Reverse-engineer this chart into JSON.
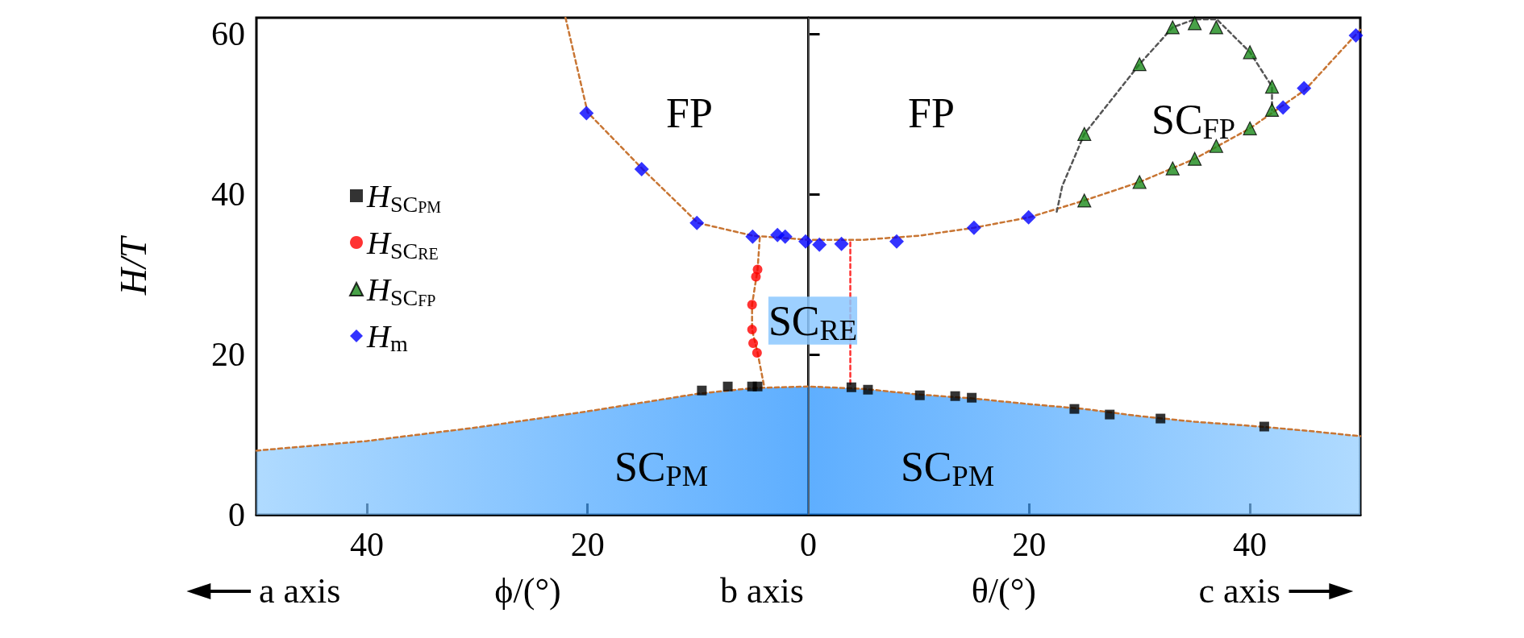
{
  "chart_data": {
    "type": "scatter",
    "ylabel": "H/T",
    "xlim": [
      -50,
      50
    ],
    "ylim": [
      0,
      62
    ],
    "xticks": [
      {
        "value": -40,
        "label": "40"
      },
      {
        "value": -20,
        "label": "20"
      },
      0,
      20,
      {
        "value": 40,
        "label": "40"
      }
    ],
    "yticks": [
      0,
      20,
      40,
      60
    ],
    "grid": false,
    "legend": "left",
    "series": [
      {
        "type": "area",
        "color": "#1a8cff",
        "line_style": "dashed",
        "marker": "none",
        "x": [
          -50,
          -40,
          -30,
          -20,
          -10,
          -5,
          0,
          5,
          10,
          15,
          20,
          25,
          30,
          35,
          40,
          45,
          50
        ],
        "values": [
          8,
          9.2,
          10.9,
          12.9,
          15.1,
          15.8,
          16,
          15.7,
          15,
          14.5,
          13.8,
          13.2,
          12.3,
          11.6,
          11.1,
          10.5,
          9.8
        ]
      },
      {
        "type": "line",
        "color": "#c87533",
        "line_style": "dashed",
        "marker": "none",
        "x": [
          -22,
          -20,
          -15,
          -10,
          -5,
          0,
          5,
          10,
          15,
          20,
          25,
          30,
          35,
          40,
          45,
          50
        ],
        "values": [
          62,
          50.2,
          43.1,
          36.4,
          34.8,
          34.3,
          34.3,
          34.8,
          35.8,
          37.1,
          39.2,
          41.5,
          44.4,
          48.2,
          53,
          60.5
        ]
      },
      {
        "type": "line",
        "color": "#555555",
        "line_style": "dashed",
        "marker": "none",
        "x": [
          22.5,
          23,
          25,
          30,
          33,
          35,
          37,
          40,
          42,
          42
        ],
        "values": [
          37.8,
          41,
          47.5,
          56.2,
          60.8,
          61.8,
          61.8,
          57.7,
          53.4,
          50.5
        ]
      },
      {
        "type": "line",
        "color": "#c87533",
        "line_style": "dashed",
        "marker": "none",
        "x": [
          -4.4,
          -4.6,
          -5.1,
          -5.1,
          -4.6,
          -4
        ],
        "values": [
          34.6,
          30.6,
          26.2,
          23.1,
          20.2,
          16
        ]
      },
      {
        "type": "line",
        "color": "#ff3030",
        "line_style": "dashed",
        "marker": "none",
        "x": [
          3.8,
          3.8
        ],
        "values": [
          34,
          16
        ]
      },
      {
        "name": "H$_{SC}$$_{PM}$",
        "color": "#000000",
        "marker": "square",
        "x": [
          -9.65,
          -7.3,
          -5.1,
          -4.6,
          3.9,
          5.4,
          10.1,
          13.3,
          14.8,
          24.1,
          27.3,
          31.9,
          41.3
        ],
        "values": [
          15.5,
          16,
          16,
          16,
          15.9,
          15.6,
          14.9,
          14.8,
          14.6,
          13.2,
          12.5,
          12,
          11
        ]
      },
      {
        "name": "H$_{SC}$$_{RE}$",
        "color": "#ff0000",
        "marker": "circle",
        "x": [
          -4.6,
          -4.75,
          -5.1,
          -5.1,
          -5,
          -4.65
        ],
        "values": [
          30.6,
          29.7,
          26.2,
          23.1,
          21.4,
          20.2
        ]
      },
      {
        "name": "H$_{SC}$$_{FP}$",
        "color": "#1a8a1a",
        "marker": "triangle",
        "x": [
          25,
          30,
          33,
          35,
          36.95,
          40,
          42,
          42,
          40,
          36.95,
          35,
          33,
          30,
          25
        ],
        "values": [
          39.2,
          41.5,
          43.2,
          44.4,
          46,
          48.2,
          50.5,
          53.4,
          57.7,
          60.8,
          61.3,
          60.8,
          56.2,
          47.5
        ]
      },
      {
        "name": "H$_{m}$",
        "color": "#0000ff",
        "marker": "diamond",
        "x": [
          -20.1,
          -15.1,
          -10.1,
          -5.05,
          -2.8,
          -2.1,
          -0.25,
          1,
          3,
          8,
          15,
          19.95,
          43,
          44.9,
          49.6
        ],
        "values": [
          50.1,
          43.1,
          36.4,
          34.7,
          34.9,
          34.7,
          34.1,
          33.7,
          33.8,
          34.1,
          35.8,
          37.1,
          50.8,
          53.2,
          59.8
        ]
      }
    ],
    "ref_lines": [
      {
        "axis": "x",
        "value": 0,
        "color": "#666666"
      }
    ],
    "annotations": [
      "FP",
      "FP",
      "SC$_{FP}$",
      "SC$_{RE}$",
      "SC$_{PM}$",
      "SC$_{PM}$",
      "a axis",
      "ϕ/(°)",
      "b axis",
      "θ/(°)",
      "c axis"
    ]
  }
}
